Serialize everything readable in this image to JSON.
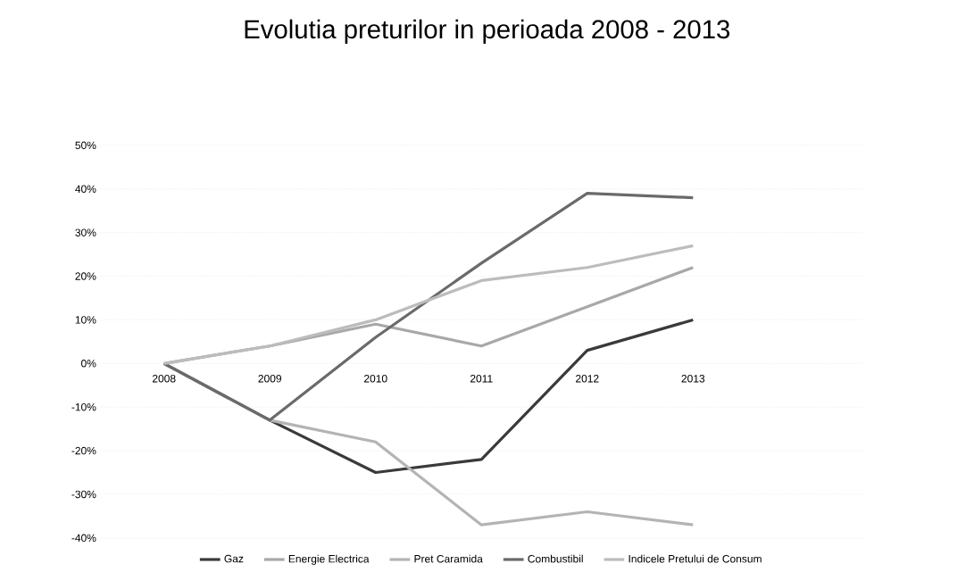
{
  "chart_data": {
    "type": "line",
    "title": "Evolutia preturilor in perioada 2008 - 2013",
    "categories": [
      "2008",
      "2009",
      "2010",
      "2011",
      "2012",
      "2013"
    ],
    "series": [
      {
        "name": "Gaz",
        "color": "#3a3a3a",
        "values": [
          0,
          -13,
          -25,
          -22,
          3,
          10
        ]
      },
      {
        "name": "Energie Electrica",
        "color": "#a8a8a8",
        "values": [
          0,
          4,
          9,
          4,
          13,
          22
        ]
      },
      {
        "name": "Pret Caramida",
        "color": "#b4b4b4",
        "values": [
          0,
          -13,
          -18,
          -37,
          -34,
          -37
        ]
      },
      {
        "name": "Combustibil",
        "color": "#6a6a6a",
        "values": [
          0,
          -13,
          6,
          23,
          39,
          38
        ]
      },
      {
        "name": "Indicele Pretului de Consum",
        "color": "#bcbcbc",
        "values": [
          0,
          4,
          10,
          19,
          22,
          27
        ]
      }
    ],
    "ylim": [
      -40,
      50
    ],
    "yticks": [
      {
        "value": -40,
        "label": "-40%"
      },
      {
        "value": -30,
        "label": "-30%"
      },
      {
        "value": -20,
        "label": "-20%"
      },
      {
        "value": -10,
        "label": "-10%"
      },
      {
        "value": 0,
        "label": "0%"
      },
      {
        "value": 10,
        "label": "10%"
      },
      {
        "value": 20,
        "label": "20%"
      },
      {
        "value": 30,
        "label": "30%"
      },
      {
        "value": 40,
        "label": "40%"
      },
      {
        "value": 50,
        "label": "50%"
      }
    ],
    "grid": "y",
    "legend": "bottom",
    "marker": "none",
    "line_style": "solid"
  }
}
